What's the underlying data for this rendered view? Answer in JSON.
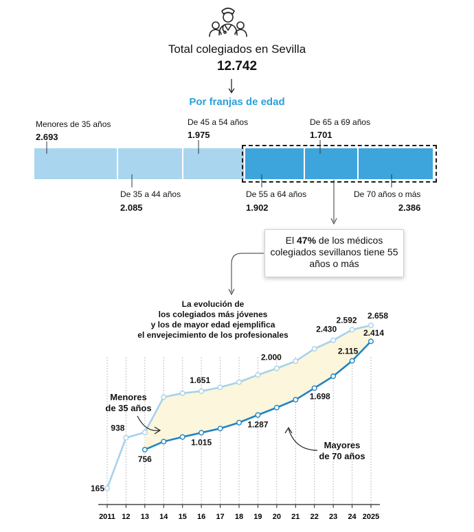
{
  "header": {
    "icon": "doctors-group-icon",
    "title": "Total colegiados en Sevilla",
    "total": "12.742",
    "subtitle": "Por franjas de edad"
  },
  "age_bands": [
    {
      "label": "Menores de 35 años",
      "value": "2.693",
      "count": 2693
    },
    {
      "label": "De 35 a 44 años",
      "value": "2.085",
      "count": 2085
    },
    {
      "label": "De 45 a 54 años",
      "value": "1.975",
      "count": 1975
    },
    {
      "label": "De 55 a 64 años",
      "value": "1.902",
      "count": 1902
    },
    {
      "label": "De 65 a 69 años",
      "value": "1.701",
      "count": 1701
    },
    {
      "label": "De 70 años o más",
      "value": "2.386",
      "count": 2386
    }
  ],
  "callout": {
    "prefix": "El ",
    "highlight": "47%",
    "suffix": " de los médicos colegiados sevillanos tiene 55 años o más"
  },
  "evolution_text": [
    "La evolución de",
    "los colegiados más jóvenes",
    "y los de mayor edad ejemplifica",
    "el envejecimiento de los profesionales"
  ],
  "colors": {
    "light_bar": "#a9d6ee",
    "dark_bar": "#3ea4dc",
    "young_line": "#a6d1ea",
    "old_line": "#1f83c3",
    "fill": "#fbf6dc",
    "accent": "#2aa0d8"
  },
  "chart_data": {
    "type": "line",
    "x": [
      "2011",
      "12",
      "13",
      "14",
      "15",
      "16",
      "17",
      "18",
      "19",
      "20",
      "21",
      "22",
      "23",
      "24",
      "2025"
    ],
    "series": [
      {
        "name": "Menores de 35 años",
        "values": [
          165,
          938,
          1020,
          1560,
          1620,
          1651,
          1710,
          1790,
          1900,
          2000,
          2110,
          2300,
          2430,
          2592,
          2658
        ],
        "labels": {
          "0": "165",
          "1": "938",
          "5": "1.651",
          "9": "2.000",
          "12": "2.430",
          "13": "2.592",
          "14": "2.658"
        }
      },
      {
        "name": "Mayores de 70 años",
        "values": [
          null,
          null,
          756,
          880,
          950,
          1015,
          1080,
          1170,
          1287,
          1400,
          1520,
          1698,
          1880,
          2115,
          2414
        ],
        "labels": {
          "2": "756",
          "5": "1.015",
          "8": "1.287",
          "11": "1.698",
          "13": "2.115",
          "14": "2.414"
        }
      }
    ],
    "annotations": [
      "Menores\nde 35 años",
      "Mayores\nde 70 años"
    ],
    "ylim": [
      0,
      2700
    ],
    "grid": "vertical dotted"
  }
}
